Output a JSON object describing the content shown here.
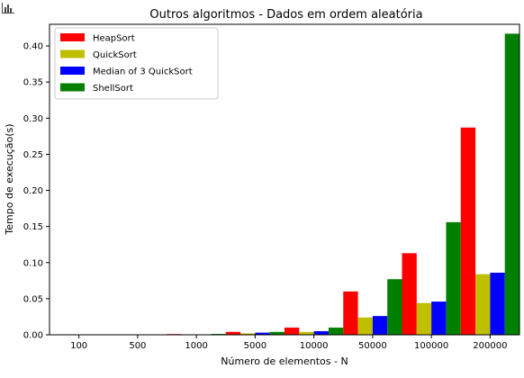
{
  "chart_data": {
    "type": "bar",
    "title": "Outros algoritmos - Dados em ordem aleatória",
    "xlabel": "Número de elementos - N",
    "ylabel": "Tempo de execução(s)",
    "categories": [
      "100",
      "500",
      "1000",
      "5000",
      "10000",
      "50000",
      "100000",
      "200000"
    ],
    "ylim": [
      0,
      0.43
    ],
    "yticks": [
      "0.00",
      "0.05",
      "0.10",
      "0.15",
      "0.20",
      "0.25",
      "0.30",
      "0.35",
      "0.40"
    ],
    "grid": false,
    "legend_position": "top-left",
    "series": [
      {
        "name": "HeapSort",
        "color": "#ff0000",
        "values": [
          0.0001,
          0.0005,
          0.001,
          0.004,
          0.01,
          0.06,
          0.113,
          0.287
        ]
      },
      {
        "name": "QuickSort",
        "color": "#bfbf00",
        "values": [
          0.0001,
          0.0003,
          0.0005,
          0.002,
          0.004,
          0.024,
          0.044,
          0.084
        ]
      },
      {
        "name": "Median of 3 QuickSort",
        "color": "#0000ff",
        "values": [
          0.0001,
          0.0003,
          0.0006,
          0.003,
          0.005,
          0.026,
          0.046,
          0.086
        ]
      },
      {
        "name": "ShellSort",
        "color": "#008000",
        "values": [
          0.0001,
          0.0005,
          0.0012,
          0.004,
          0.01,
          0.077,
          0.156,
          0.417
        ]
      }
    ]
  }
}
